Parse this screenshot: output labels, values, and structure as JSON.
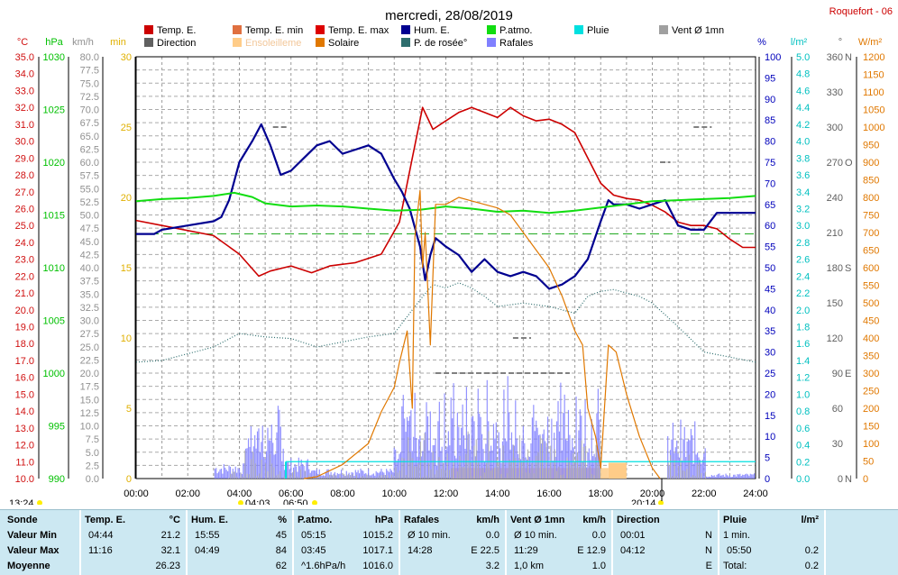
{
  "title": "mercredi, 28/08/2019",
  "station": "Roquefort - 06",
  "colors": {
    "temp": "#cc0000",
    "temp_axis": "#d01010",
    "hpa": "#00c000",
    "kmh": "#909090",
    "gold": "#e0b000",
    "pct": "#0000bb",
    "lm2": "#00c0c0",
    "deg": "#606060",
    "wm2": "#e07800",
    "hum": "#000090",
    "patmo": "#11dd11",
    "solaire": "#e07800",
    "rosee": "#2e6e6e",
    "rafales": "#8080ff",
    "direction": "#808080",
    "pluie": "#00e0e0",
    "ensoleillement": "#ffcc88"
  },
  "legend": [
    {
      "label": "Temp. E.",
      "color": "#cc0000"
    },
    {
      "label": "Temp. E. min",
      "color": "#e07040"
    },
    {
      "label": "Temp. E. max",
      "color": "#dd0000"
    },
    {
      "label": "Hum. E.",
      "color": "#000090"
    },
    {
      "label": "P.atmo.",
      "color": "#11dd11"
    },
    {
      "label": "Pluie",
      "color": "#00e0e0"
    },
    {
      "label": "Vent Ø 1mn",
      "color": "#a0a0a0"
    },
    {
      "label": "Direction",
      "color": "#606060"
    },
    {
      "label": "Ensoleilleme",
      "color": "#ffcc88"
    },
    {
      "label": "Solaire",
      "color": "#e07800"
    },
    {
      "label": "P. de rosée°",
      "color": "#2e6e6e"
    },
    {
      "label": "Rafales",
      "color": "#8080ff"
    }
  ],
  "axis_units": {
    "temp": "°C",
    "hpa": "hPa",
    "kmh": "km/h",
    "min": "min",
    "pct": "%",
    "lm2": "l/m²",
    "deg": "°",
    "wm2": "W/m²"
  },
  "markers": {
    "left_time": "13:24",
    "sunrise": "04:03",
    "sunrise2": "06:50",
    "sunset": "20:14"
  },
  "chart_data": {
    "type": "line",
    "x": {
      "unit": "hours",
      "range": [
        0,
        24
      ],
      "ticks": [
        "00:00",
        "02:00",
        "04:00",
        "06:00",
        "08:00",
        "10:00",
        "12:00",
        "14:00",
        "16:00",
        "18:00",
        "20:00",
        "22:00",
        "24:00"
      ]
    },
    "axes": {
      "temp_c": {
        "range": [
          10,
          35
        ],
        "step": 1
      },
      "hpa": {
        "range": [
          990,
          1030
        ],
        "step": 5
      },
      "kmh": {
        "range": [
          0,
          80
        ],
        "step": 2.5
      },
      "min": {
        "range": [
          0,
          30
        ],
        "step": 5
      },
      "pct": {
        "range": [
          0,
          100
        ],
        "step": 5
      },
      "l_m2": {
        "range": [
          0,
          5
        ],
        "step": 0.2
      },
      "direction_deg": {
        "range": [
          0,
          360
        ],
        "ticks": [
          0,
          30,
          60,
          90,
          120,
          150,
          180,
          210,
          240,
          270,
          300,
          330,
          360
        ],
        "labels": {
          "0": "N",
          "90": "E",
          "180": "S",
          "270": "O",
          "360": "N"
        }
      },
      "w_m2": {
        "range": [
          0,
          1200
        ],
        "step": 50
      }
    },
    "series": [
      {
        "name": "Temp. E.",
        "axis": "temp_c",
        "points": [
          [
            0,
            25.3
          ],
          [
            1,
            25
          ],
          [
            2,
            24.7
          ],
          [
            3,
            24.4
          ],
          [
            4,
            23.3
          ],
          [
            4.75,
            22
          ],
          [
            5.2,
            22.3
          ],
          [
            6,
            22.6
          ],
          [
            6.8,
            22.2
          ],
          [
            7.5,
            22.6
          ],
          [
            8.5,
            22.8
          ],
          [
            9.5,
            23.3
          ],
          [
            10.2,
            25.2
          ],
          [
            10.7,
            29
          ],
          [
            11.1,
            32
          ],
          [
            11.5,
            30.7
          ],
          [
            12,
            31.2
          ],
          [
            12.5,
            31.7
          ],
          [
            13,
            32
          ],
          [
            13.5,
            31.7
          ],
          [
            14,
            31.4
          ],
          [
            14.5,
            32
          ],
          [
            15,
            31.5
          ],
          [
            15.5,
            31.2
          ],
          [
            16,
            31.3
          ],
          [
            16.5,
            31
          ],
          [
            17,
            30.5
          ],
          [
            17.5,
            29
          ],
          [
            18,
            27.5
          ],
          [
            18.5,
            26.8
          ],
          [
            19,
            26.6
          ],
          [
            19.5,
            26.5
          ],
          [
            20,
            26.2
          ],
          [
            20.5,
            25.8
          ],
          [
            21,
            25.2
          ],
          [
            21.5,
            25
          ],
          [
            22,
            25
          ],
          [
            22.5,
            24.8
          ],
          [
            23,
            24.2
          ],
          [
            23.5,
            23.7
          ],
          [
            24,
            23.7
          ]
        ]
      },
      {
        "name": "Hum. E.",
        "axis": "pct",
        "points": [
          [
            0,
            58
          ],
          [
            0.7,
            58
          ],
          [
            1,
            59
          ],
          [
            2,
            60
          ],
          [
            3,
            61
          ],
          [
            3.3,
            62
          ],
          [
            3.6,
            66
          ],
          [
            4,
            75
          ],
          [
            4.5,
            80
          ],
          [
            4.85,
            84
          ],
          [
            5.2,
            79
          ],
          [
            5.6,
            72
          ],
          [
            6,
            73
          ],
          [
            6.5,
            76
          ],
          [
            7,
            79
          ],
          [
            7.5,
            80
          ],
          [
            8,
            77
          ],
          [
            8.5,
            78
          ],
          [
            9,
            79
          ],
          [
            9.5,
            77
          ],
          [
            10,
            71
          ],
          [
            10.3,
            68
          ],
          [
            10.6,
            64
          ],
          [
            11,
            55
          ],
          [
            11.2,
            47
          ],
          [
            11.4,
            53
          ],
          [
            11.6,
            57
          ],
          [
            12,
            55
          ],
          [
            12.5,
            53
          ],
          [
            13,
            49
          ],
          [
            13.5,
            52
          ],
          [
            14,
            49
          ],
          [
            14.5,
            48
          ],
          [
            15,
            49
          ],
          [
            15.5,
            48
          ],
          [
            16,
            45
          ],
          [
            16.5,
            46
          ],
          [
            17,
            48
          ],
          [
            17.5,
            52
          ],
          [
            18,
            61
          ],
          [
            18.3,
            66
          ],
          [
            18.5,
            65
          ],
          [
            19,
            65
          ],
          [
            19.5,
            64
          ],
          [
            20,
            65
          ],
          [
            20.5,
            66
          ],
          [
            21,
            60
          ],
          [
            21.5,
            59
          ],
          [
            22,
            59
          ],
          [
            22.5,
            63
          ],
          [
            23,
            63
          ],
          [
            23.5,
            63
          ],
          [
            24,
            63
          ]
        ]
      },
      {
        "name": "P.atmo.",
        "axis": "hpa",
        "points": [
          [
            0,
            1016.3
          ],
          [
            1,
            1016.5
          ],
          [
            2,
            1016.6
          ],
          [
            3,
            1016.8
          ],
          [
            3.8,
            1017.1
          ],
          [
            4.5,
            1016.7
          ],
          [
            5,
            1016.1
          ],
          [
            6,
            1015.8
          ],
          [
            7,
            1015.9
          ],
          [
            8,
            1015.8
          ],
          [
            9,
            1015.6
          ],
          [
            10,
            1015.4
          ],
          [
            11,
            1015.5
          ],
          [
            12,
            1015.8
          ],
          [
            13,
            1015.6
          ],
          [
            14,
            1015.3
          ],
          [
            15,
            1015.4
          ],
          [
            16,
            1015.2
          ],
          [
            17,
            1015.4
          ],
          [
            18,
            1015.7
          ],
          [
            19,
            1016.0
          ],
          [
            20,
            1016.3
          ],
          [
            21,
            1016.4
          ],
          [
            22,
            1016.5
          ],
          [
            23,
            1016.6
          ],
          [
            24,
            1016.8
          ]
        ]
      },
      {
        "name": "P. de rosée°",
        "axis": "temp_c",
        "points": [
          [
            0,
            16.9
          ],
          [
            1,
            17
          ],
          [
            2,
            17.4
          ],
          [
            3,
            17.8
          ],
          [
            4,
            18.6
          ],
          [
            5,
            18.4
          ],
          [
            6,
            18.3
          ],
          [
            7,
            17.8
          ],
          [
            8,
            18.1
          ],
          [
            9,
            18.4
          ],
          [
            10,
            18.6
          ],
          [
            11,
            20.6
          ],
          [
            11.5,
            21.5
          ],
          [
            12,
            21.3
          ],
          [
            12.5,
            21.6
          ],
          [
            13,
            21.3
          ],
          [
            13.5,
            20.8
          ],
          [
            14,
            20.2
          ],
          [
            15,
            20.4
          ],
          [
            16,
            20.2
          ],
          [
            17,
            19.8
          ],
          [
            17.5,
            20.8
          ],
          [
            18,
            21.1
          ],
          [
            18.5,
            21.2
          ],
          [
            19,
            21
          ],
          [
            19.5,
            20.8
          ],
          [
            20,
            20.4
          ],
          [
            21,
            19
          ],
          [
            22,
            17.5
          ],
          [
            23,
            17.2
          ],
          [
            24,
            16.9
          ]
        ]
      },
      {
        "name": "Solaire",
        "axis": "w_m2",
        "points": [
          [
            6.5,
            0
          ],
          [
            7,
            5
          ],
          [
            8,
            40
          ],
          [
            9,
            100
          ],
          [
            9.5,
            190
          ],
          [
            10,
            260
          ],
          [
            10.2,
            330
          ],
          [
            10.5,
            420
          ],
          [
            10.7,
            200
          ],
          [
            10.8,
            690
          ],
          [
            11,
            820
          ],
          [
            11.1,
            600
          ],
          [
            11.2,
            700
          ],
          [
            11.4,
            380
          ],
          [
            11.6,
            780
          ],
          [
            12,
            780
          ],
          [
            12.5,
            800
          ],
          [
            13,
            790
          ],
          [
            13.5,
            780
          ],
          [
            14,
            770
          ],
          [
            14.5,
            750
          ],
          [
            15,
            700
          ],
          [
            15.5,
            650
          ],
          [
            16,
            600
          ],
          [
            16.5,
            520
          ],
          [
            17,
            420
          ],
          [
            17.3,
            380
          ],
          [
            17.5,
            200
          ],
          [
            17.8,
            120
          ],
          [
            18,
            30
          ],
          [
            18.3,
            380
          ],
          [
            18.6,
            360
          ],
          [
            19,
            240
          ],
          [
            19.5,
            120
          ],
          [
            20,
            30
          ],
          [
            20.3,
            0
          ]
        ]
      }
    ],
    "annotations": [
      {
        "series": "Temp. E. min",
        "value": 21.2,
        "time": "04:44"
      },
      {
        "series": "Temp. E. max",
        "value": 32.1,
        "time": "11:16"
      },
      {
        "series": "Pluie",
        "value": 0.2,
        "time": "05:50"
      }
    ]
  },
  "summary": {
    "headers": {
      "sonde": "Sonde",
      "temp": "Temp. E.",
      "temp_unit": "°C",
      "hum": "Hum. E.",
      "hum_unit": "%",
      "patmo": "P.atmo.",
      "patmo_unit": "hPa",
      "rafales": "Rafales",
      "rafales_unit": "km/h",
      "vent": "Vent Ø 1mn",
      "vent_unit": "km/h",
      "direction": "Direction",
      "pluie": "Pluie",
      "pluie_unit": "l/m²"
    },
    "row_labels": [
      "Valeur Min",
      "Valeur Max",
      "Moyenne"
    ],
    "temp": [
      [
        "04:44",
        "21.2"
      ],
      [
        "11:16",
        "32.1"
      ],
      [
        "",
        "26.23"
      ]
    ],
    "hum": [
      [
        "15:55",
        "45"
      ],
      [
        "04:49",
        "84"
      ],
      [
        "",
        "62"
      ]
    ],
    "patmo": [
      [
        "05:15",
        "1015.2"
      ],
      [
        "03:45",
        "1017.1"
      ],
      [
        "^1.6hPa/h",
        "1016.0"
      ]
    ],
    "rafales": [
      [
        "Ø 10 min.",
        "0.0"
      ],
      [
        "14:28",
        "E 22.5"
      ],
      [
        "",
        "3.2"
      ]
    ],
    "vent": [
      [
        "Ø 10 min.",
        "0.0"
      ],
      [
        "11:29",
        "E 12.9"
      ],
      [
        "1,0 km",
        "1.0"
      ]
    ],
    "direction": [
      [
        "00:01",
        "N"
      ],
      [
        "04:12",
        "N"
      ],
      [
        "",
        "E"
      ]
    ],
    "pluie": [
      [
        "1 min.",
        ""
      ],
      [
        "05:50",
        "0.2"
      ],
      [
        "Total:",
        "0.2"
      ]
    ]
  }
}
